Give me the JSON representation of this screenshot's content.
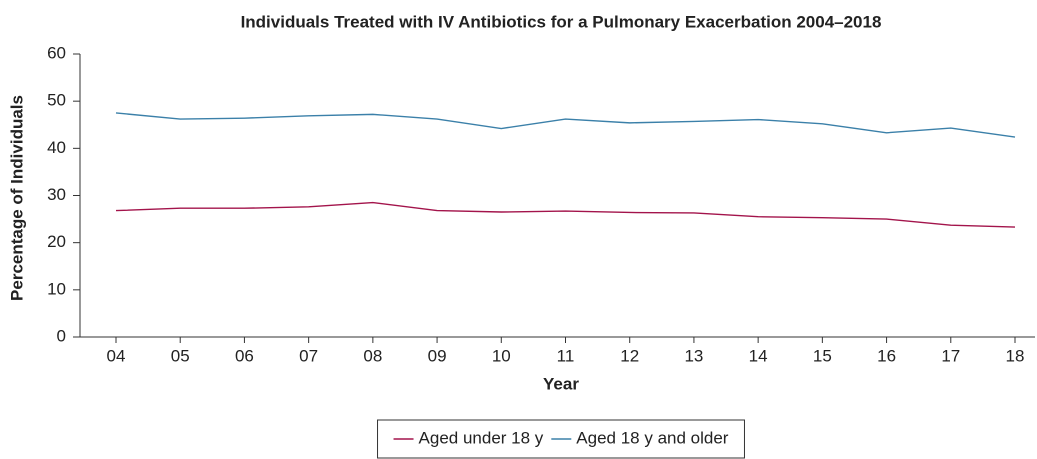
{
  "chart_data": {
    "type": "line",
    "title": "Individuals Treated with IV Antibiotics for a Pulmonary Exacerbation 2004–2018",
    "x_label": "Year",
    "y_label": "Percentage of Individuals",
    "categories": [
      "04",
      "05",
      "06",
      "07",
      "08",
      "09",
      "10",
      "11",
      "12",
      "13",
      "14",
      "15",
      "16",
      "17",
      "18"
    ],
    "series": [
      {
        "name": "Aged under 18 y",
        "color": "#a3144b",
        "values": [
          26.8,
          27.3,
          27.3,
          27.6,
          28.5,
          26.8,
          26.5,
          26.7,
          26.4,
          26.3,
          25.5,
          25.3,
          25.0,
          23.7,
          23.3
        ]
      },
      {
        "name": "Aged 18 y and older",
        "color": "#3b80a9",
        "values": [
          47.5,
          46.2,
          46.4,
          46.9,
          47.2,
          46.2,
          44.2,
          46.2,
          45.4,
          45.7,
          46.1,
          45.2,
          43.3,
          44.3,
          42.4
        ]
      }
    ],
    "ylim": [
      0,
      60
    ],
    "yticks": [
      0,
      10,
      20,
      30,
      40,
      50,
      60
    ],
    "grid": false,
    "legend": "bottom"
  }
}
